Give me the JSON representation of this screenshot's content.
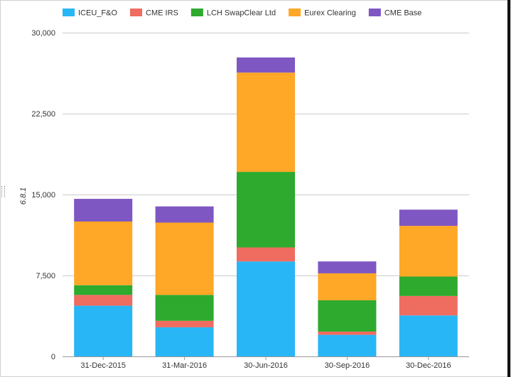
{
  "chart_data": {
    "type": "bar",
    "stacked": true,
    "title": "",
    "xlabel": "",
    "ylabel": "6.8.1",
    "categories": [
      "31-Dec-2015",
      "31-Mar-2016",
      "30-Jun-2016",
      "30-Sep-2016",
      "30-Dec-2016"
    ],
    "ylim": [
      0,
      30000
    ],
    "yticks": [
      0,
      7500,
      15000,
      22500,
      30000
    ],
    "ytick_labels": [
      "0",
      "7,500",
      "15,000",
      "22,500",
      "30,000"
    ],
    "grid": true,
    "legend_position": "top-left",
    "series": [
      {
        "name": "ICEU_F&O",
        "color": "#29b6f6",
        "values": [
          4700,
          2700,
          8800,
          2000,
          3800
        ]
      },
      {
        "name": "CME IRS",
        "color": "#ef6c60",
        "values": [
          1000,
          600,
          1300,
          300,
          1800
        ]
      },
      {
        "name": "LCH SwapClear Ltd",
        "color": "#2eaa2e",
        "values": [
          900,
          2400,
          7000,
          2900,
          1800
        ]
      },
      {
        "name": "Eurex Clearing",
        "color": "#ffa726",
        "values": [
          5900,
          6700,
          9200,
          2500,
          4700
        ]
      },
      {
        "name": "CME Base",
        "color": "#7e57c2",
        "values": [
          2100,
          1500,
          1400,
          1100,
          1500
        ]
      }
    ]
  }
}
